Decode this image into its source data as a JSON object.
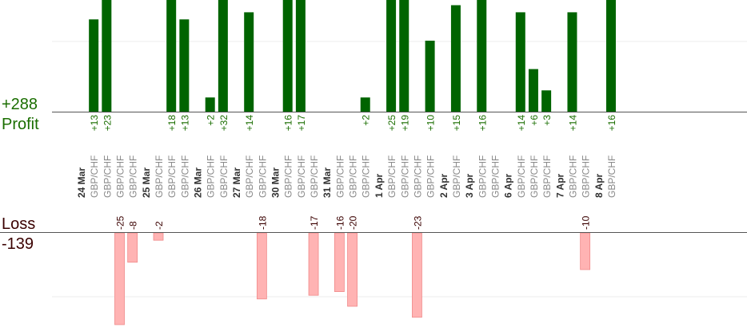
{
  "summary": {
    "profit_total": "+288",
    "profit_label": "Profit",
    "loss_label": "Loss",
    "loss_total": "-139"
  },
  "colors": {
    "profit_bar": "#006400",
    "loss_bar": "#ffb3b3",
    "profit_text": "#1a6e00",
    "loss_text": "#3a0000",
    "date_text": "#333333",
    "pair_text": "#888888"
  },
  "chart_data": {
    "type": "bar",
    "title": "",
    "xlabel": "",
    "ylabel": "",
    "grid": true,
    "profit_ylim": [
      0,
      16
    ],
    "loss_ylim": [
      -25,
      0
    ],
    "columns": [
      {
        "date": "24 Mar"
      },
      {
        "pair": "GBP/CHF",
        "profit": 13,
        "profit_label": "+13"
      },
      {
        "pair": "GBP/CHF",
        "profit": 23,
        "profit_label": "+23"
      },
      {
        "pair": "GBP/CHF",
        "loss": -25,
        "loss_label": "-25"
      },
      {
        "pair": "GBP/CHF",
        "loss": -8,
        "loss_label": "-8"
      },
      {
        "date": "25 Mar"
      },
      {
        "pair": "GBP/CHF",
        "loss": -2,
        "loss_label": "-2"
      },
      {
        "pair": "GBP/CHF",
        "profit": 18,
        "profit_label": "+18"
      },
      {
        "pair": "GBP/CHF",
        "profit": 13,
        "profit_label": "+13"
      },
      {
        "date": "26 Mar"
      },
      {
        "pair": "GBP/CHF",
        "profit": 2,
        "profit_label": "+2"
      },
      {
        "pair": "GBP/CHF",
        "profit": 32,
        "profit_label": "+32"
      },
      {
        "date": "27 Mar"
      },
      {
        "pair": "GBP/CHF",
        "profit": 14,
        "profit_label": "+14"
      },
      {
        "pair": "GBP/CHF",
        "loss": -18,
        "loss_label": "-18"
      },
      {
        "date": "30 Mar"
      },
      {
        "pair": "GBP/CHF",
        "profit": 16,
        "profit_label": "+16"
      },
      {
        "pair": "GBP/CHF",
        "profit": 17,
        "profit_label": "+17"
      },
      {
        "pair": "GBP/CHF",
        "loss": -17,
        "loss_label": "-17"
      },
      {
        "date": "31 Mar"
      },
      {
        "pair": "GBP/CHF",
        "loss": -16,
        "loss_label": "-16"
      },
      {
        "pair": "GBP/CHF",
        "loss": -20,
        "loss_label": "-20"
      },
      {
        "pair": "GBP/CHF",
        "profit": 2,
        "profit_label": "+2"
      },
      {
        "date": "1 Apr"
      },
      {
        "pair": "GBP/CHF",
        "profit": 25,
        "profit_label": "+25"
      },
      {
        "pair": "GBP/CHF",
        "profit": 19,
        "profit_label": "+19"
      },
      {
        "pair": "GBP/CHF",
        "loss": -23,
        "loss_label": "-23"
      },
      {
        "pair": "GBP/CHF",
        "profit": 10,
        "profit_label": "+10"
      },
      {
        "date": "2 Apr"
      },
      {
        "pair": "GBP/CHF",
        "profit": 15,
        "profit_label": "+15"
      },
      {
        "date": "3 Apr"
      },
      {
        "pair": "GBP/CHF",
        "profit": 16,
        "profit_label": "+16"
      },
      {
        "pair": "GBP/CHF"
      },
      {
        "date": "6 Apr"
      },
      {
        "pair": "GBP/CHF",
        "profit": 14,
        "profit_label": "+14"
      },
      {
        "pair": "GBP/CHF",
        "profit": 6,
        "profit_label": "+6"
      },
      {
        "pair": "GBP/CHF",
        "profit": 3,
        "profit_label": "+3"
      },
      {
        "date": "7 Apr"
      },
      {
        "pair": "GBP/CHF",
        "profit": 14,
        "profit_label": "+14"
      },
      {
        "pair": "GBP/CHF",
        "loss": -10,
        "loss_label": "-10"
      },
      {
        "date": "8 Apr"
      },
      {
        "pair": "GBP/CHF",
        "profit": 16,
        "profit_label": "+16"
      }
    ]
  }
}
